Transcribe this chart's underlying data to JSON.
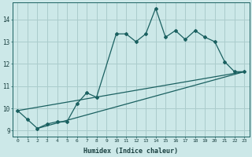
{
  "title": "",
  "xlabel": "Humidex (Indice chaleur)",
  "ylabel": "",
  "bg_color": "#cce8e8",
  "grid_color": "#aacccc",
  "line_color": "#1a6060",
  "xlim": [
    -0.5,
    23.5
  ],
  "ylim": [
    8.75,
    14.75
  ],
  "xticks": [
    0,
    1,
    2,
    3,
    4,
    5,
    6,
    7,
    8,
    9,
    10,
    11,
    12,
    13,
    14,
    15,
    16,
    17,
    18,
    19,
    20,
    21,
    22,
    23
  ],
  "yticks": [
    9,
    10,
    11,
    12,
    13,
    14
  ],
  "curve1_x": [
    0,
    1,
    2,
    3,
    4,
    5,
    6,
    7,
    8,
    10,
    11,
    12,
    13,
    14,
    15,
    16,
    17,
    18,
    19,
    20,
    21,
    22,
    23
  ],
  "curve1_y": [
    9.9,
    9.5,
    9.1,
    9.3,
    9.4,
    9.4,
    10.2,
    10.7,
    10.5,
    13.35,
    13.35,
    13.0,
    13.35,
    14.5,
    13.2,
    13.5,
    13.1,
    13.5,
    13.2,
    13.0,
    12.1,
    11.65,
    11.65
  ],
  "line1_x": [
    0,
    23
  ],
  "line1_y": [
    9.9,
    11.65
  ],
  "line2_x": [
    2,
    23
  ],
  "line2_y": [
    9.1,
    11.65
  ],
  "figsize": [
    3.2,
    2.0
  ],
  "dpi": 100
}
